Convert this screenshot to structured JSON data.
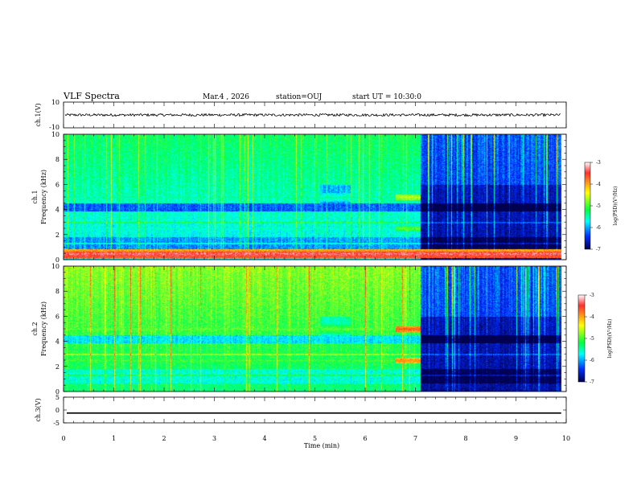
{
  "chart_data": {
    "type": "heatmap",
    "title": "VLF Spectra",
    "date": "Mar.4 , 2026",
    "station": "station=OUJ",
    "start_ut": "start UT = 10:30:0",
    "xlabel": "Time (min)",
    "xlim": [
      0,
      10
    ],
    "x_ticks": [
      0,
      1,
      2,
      3,
      4,
      5,
      6,
      7,
      8,
      9,
      10
    ],
    "panels": {
      "ch1_wave": {
        "ylabel": "ch.1(V)",
        "ylim": [
          -10,
          10
        ],
        "y_ticks": [
          10,
          -10
        ],
        "mean_level": 0,
        "noise_amplitude": 1
      },
      "ch1_spec": {
        "ylabel_top": "ch.1",
        "ylabel": "Frequency (kHz)",
        "ylim": [
          0,
          10
        ],
        "y_ticks": [
          0,
          2,
          4,
          6,
          8,
          10
        ],
        "features": [
          {
            "name": "5 kHz band",
            "freq_khz": 5.0,
            "t_min": [
              0,
              7.1
            ],
            "log_psd": -5.4
          },
          {
            "name": "2.5 kHz band",
            "freq_khz": 2.5,
            "t_min": [
              0,
              7.1
            ],
            "log_psd": -5.6
          },
          {
            "name": "enhanced 5 kHz",
            "freq_khz": 5.0,
            "t_min": [
              6.6,
              7.1
            ],
            "log_psd": -4.6
          },
          {
            "name": "enhanced 2.5 kHz",
            "freq_khz": 2.5,
            "t_min": [
              6.6,
              7.1
            ],
            "log_psd": -4.9
          },
          {
            "name": "low-freq line",
            "freq_khz": 0.5,
            "t_min": [
              0,
              9.9
            ],
            "log_psd": -3.3
          }
        ]
      },
      "ch2_spec": {
        "ylabel_top": "ch.2",
        "ylabel": "Frequency (kHz)",
        "ylim": [
          0,
          10
        ],
        "y_ticks": [
          0,
          2,
          4,
          6,
          8,
          10
        ],
        "features": [
          {
            "name": "5 kHz band",
            "freq_khz": 5.0,
            "t_min": [
              0,
              7.1
            ],
            "log_psd": -4.9
          },
          {
            "name": "2.5 kHz band",
            "freq_khz": 2.5,
            "t_min": [
              0,
              7.1
            ],
            "log_psd": -5.0
          },
          {
            "name": "enhanced 5 kHz",
            "freq_khz": 5.0,
            "t_min": [
              6.6,
              7.1
            ],
            "log_psd": -3.7
          },
          {
            "name": "enhanced 2.5 kHz",
            "freq_khz": 2.5,
            "t_min": [
              6.6,
              7.1
            ],
            "log_psd": -3.9
          }
        ]
      },
      "ch3_wave": {
        "ylabel": "ch.3(V)",
        "ylim": [
          -5,
          5
        ],
        "y_ticks": [
          5,
          0,
          -5
        ],
        "level": -1.2
      }
    },
    "colorbar": {
      "label": "log(PSD)(V²/Hz)",
      "range": [
        -7,
        -3
      ],
      "ticks": [
        -3,
        -4,
        -5,
        -6,
        -7
      ],
      "colors": [
        "#ffffff",
        "#ff0000",
        "#ffff00",
        "#00ff00",
        "#00ffff",
        "#0000ff",
        "#000040"
      ]
    }
  }
}
